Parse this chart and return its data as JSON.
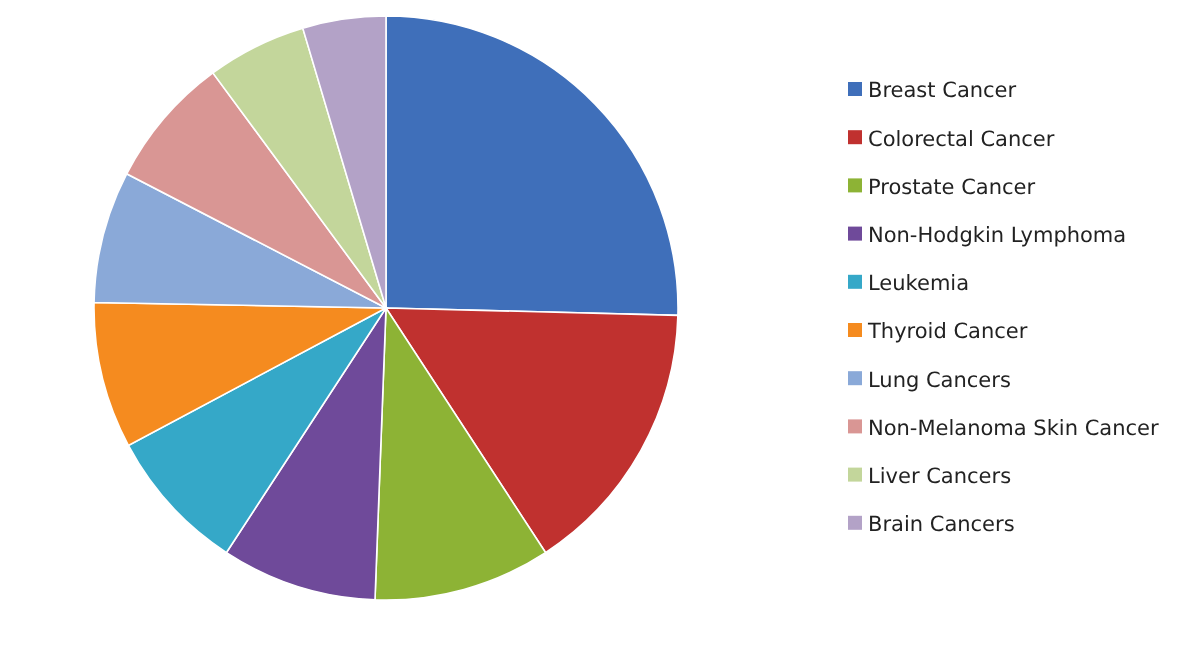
{
  "chart_data": {
    "type": "pie",
    "categories": [
      "Breast Cancer",
      "Colorectal Cancer",
      "Prostate Cancer",
      "Non-Hodgkin Lymphoma",
      "Leukemia",
      "Thyroid Cancer",
      "Lung Cancers",
      "Non-Melanoma Skin Cancer",
      "Liver Cancers",
      "Brain Cancers"
    ],
    "values": [
      25.4,
      15.4,
      9.8,
      8.6,
      8,
      8.1,
      7.3,
      7.3,
      5.5,
      4.6
    ],
    "colors": [
      "#3f6fba",
      "#c0312f",
      "#8db335",
      "#6f4a9a",
      "#35a8c8",
      "#f58b1f",
      "#8aa9d8",
      "#d99694",
      "#c3d69b",
      "#b3a2c7"
    ],
    "legend": "right"
  }
}
